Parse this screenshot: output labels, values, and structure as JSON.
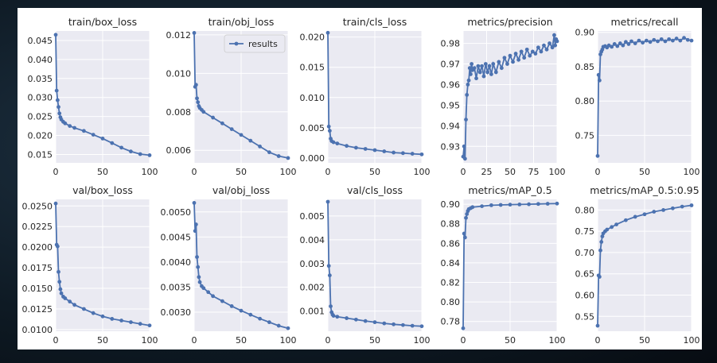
{
  "colors": {
    "series": "#4c72b0",
    "panel_bg": "#eaeaf2",
    "grid": "#ffffff",
    "frame_bg": "#0e1a24"
  },
  "legend": {
    "label": "results",
    "placement": "top-right",
    "panel": 1
  },
  "chart_data": [
    {
      "type": "line",
      "title": "train/box_loss",
      "xlim": [
        0,
        100
      ],
      "ylim": [
        0.0128,
        0.0475
      ],
      "xticks": [
        0,
        50,
        100
      ],
      "yticks": [
        0.015,
        0.02,
        0.025,
        0.03,
        0.035,
        0.04,
        0.045
      ],
      "ytick_labels": [
        "0.015",
        "0.020",
        "0.025",
        "0.030",
        "0.035",
        "0.040",
        "0.045"
      ],
      "points": [
        [
          0,
          0.0465
        ],
        [
          1,
          0.0318
        ],
        [
          2,
          0.0293
        ],
        [
          3,
          0.0275
        ],
        [
          4,
          0.0258
        ],
        [
          5,
          0.0248
        ],
        [
          6,
          0.0242
        ],
        [
          8,
          0.0236
        ],
        [
          10,
          0.0232
        ],
        [
          15,
          0.0225
        ],
        [
          20,
          0.022
        ],
        [
          30,
          0.0212
        ],
        [
          40,
          0.0202
        ],
        [
          50,
          0.0192
        ],
        [
          60,
          0.018
        ],
        [
          70,
          0.0168
        ],
        [
          80,
          0.0158
        ],
        [
          90,
          0.0151
        ],
        [
          100,
          0.0148
        ]
      ]
    },
    {
      "type": "line",
      "title": "train/obj_loss",
      "xlim": [
        0,
        100
      ],
      "ylim": [
        0.00535,
        0.0122
      ],
      "xticks": [
        0,
        50,
        100
      ],
      "yticks": [
        0.006,
        0.008,
        0.01,
        0.012
      ],
      "ytick_labels": [
        "0.006",
        "0.008",
        "0.010",
        "0.012"
      ],
      "points": [
        [
          0,
          0.0121
        ],
        [
          1,
          0.0093
        ],
        [
          2,
          0.0094
        ],
        [
          3,
          0.0087
        ],
        [
          4,
          0.0085
        ],
        [
          5,
          0.0083
        ],
        [
          6,
          0.0082
        ],
        [
          8,
          0.0081
        ],
        [
          10,
          0.008
        ],
        [
          20,
          0.0077
        ],
        [
          30,
          0.0074
        ],
        [
          40,
          0.0071
        ],
        [
          50,
          0.0068
        ],
        [
          60,
          0.0065
        ],
        [
          70,
          0.0062
        ],
        [
          80,
          0.0059
        ],
        [
          90,
          0.0057
        ],
        [
          100,
          0.0056
        ]
      ]
    },
    {
      "type": "line",
      "title": "train/cls_loss",
      "xlim": [
        0,
        100
      ],
      "ylim": [
        -0.0008,
        0.021
      ],
      "xticks": [
        0,
        50,
        100
      ],
      "yticks": [
        0.0,
        0.005,
        0.01,
        0.015,
        0.02
      ],
      "ytick_labels": [
        "0.000",
        "0.005",
        "0.010",
        "0.015",
        "0.020"
      ],
      "points": [
        [
          0,
          0.0207
        ],
        [
          1,
          0.0052
        ],
        [
          2,
          0.0045
        ],
        [
          3,
          0.0032
        ],
        [
          4,
          0.0028
        ],
        [
          6,
          0.0026
        ],
        [
          10,
          0.0024
        ],
        [
          20,
          0.002
        ],
        [
          30,
          0.0017
        ],
        [
          40,
          0.0015
        ],
        [
          50,
          0.0013
        ],
        [
          60,
          0.0011
        ],
        [
          70,
          0.0009
        ],
        [
          80,
          0.0008
        ],
        [
          90,
          0.0007
        ],
        [
          100,
          0.0006
        ]
      ]
    },
    {
      "type": "line",
      "title": "metrics/precision",
      "xlim": [
        0,
        100
      ],
      "ylim": [
        0.922,
        0.986
      ],
      "xticks": [
        0,
        25,
        50,
        75,
        100
      ],
      "yticks": [
        0.93,
        0.94,
        0.95,
        0.96,
        0.97,
        0.98
      ],
      "ytick_labels": [
        "0.93",
        "0.94",
        "0.95",
        "0.96",
        "0.97",
        "0.98"
      ],
      "points": [
        [
          0,
          0.925
        ],
        [
          1,
          0.93
        ],
        [
          2,
          0.924
        ],
        [
          3,
          0.943
        ],
        [
          4,
          0.955
        ],
        [
          5,
          0.96
        ],
        [
          6,
          0.962
        ],
        [
          7,
          0.968
        ],
        [
          8,
          0.965
        ],
        [
          9,
          0.97
        ],
        [
          10,
          0.967
        ],
        [
          12,
          0.968
        ],
        [
          14,
          0.963
        ],
        [
          16,
          0.969
        ],
        [
          18,
          0.966
        ],
        [
          20,
          0.969
        ],
        [
          22,
          0.964
        ],
        [
          24,
          0.97
        ],
        [
          26,
          0.966
        ],
        [
          28,
          0.969
        ],
        [
          30,
          0.965
        ],
        [
          32,
          0.97
        ],
        [
          35,
          0.966
        ],
        [
          38,
          0.971
        ],
        [
          41,
          0.968
        ],
        [
          44,
          0.973
        ],
        [
          47,
          0.97
        ],
        [
          50,
          0.974
        ],
        [
          53,
          0.971
        ],
        [
          56,
          0.975
        ],
        [
          59,
          0.972
        ],
        [
          62,
          0.976
        ],
        [
          65,
          0.973
        ],
        [
          68,
          0.977
        ],
        [
          71,
          0.974
        ],
        [
          74,
          0.976
        ],
        [
          77,
          0.975
        ],
        [
          80,
          0.978
        ],
        [
          83,
          0.976
        ],
        [
          86,
          0.979
        ],
        [
          89,
          0.977
        ],
        [
          92,
          0.98
        ],
        [
          95,
          0.978
        ],
        [
          97,
          0.984
        ],
        [
          98,
          0.979
        ],
        [
          99,
          0.982
        ],
        [
          100,
          0.981
        ]
      ]
    },
    {
      "type": "line",
      "title": "metrics/recall",
      "xlim": [
        0,
        100
      ],
      "ylim": [
        0.71,
        0.902
      ],
      "xticks": [
        0,
        50,
        100
      ],
      "yticks": [
        0.75,
        0.8,
        0.85,
        0.9
      ],
      "ytick_labels": [
        "0.75",
        "0.80",
        "0.85",
        "0.90"
      ],
      "points": [
        [
          0,
          0.72
        ],
        [
          1,
          0.838
        ],
        [
          2,
          0.83
        ],
        [
          3,
          0.868
        ],
        [
          4,
          0.872
        ],
        [
          5,
          0.875
        ],
        [
          6,
          0.879
        ],
        [
          8,
          0.88
        ],
        [
          10,
          0.878
        ],
        [
          12,
          0.881
        ],
        [
          15,
          0.879
        ],
        [
          18,
          0.883
        ],
        [
          21,
          0.88
        ],
        [
          24,
          0.884
        ],
        [
          27,
          0.881
        ],
        [
          30,
          0.886
        ],
        [
          33,
          0.883
        ],
        [
          36,
          0.887
        ],
        [
          40,
          0.884
        ],
        [
          44,
          0.888
        ],
        [
          48,
          0.885
        ],
        [
          52,
          0.888
        ],
        [
          56,
          0.886
        ],
        [
          60,
          0.889
        ],
        [
          64,
          0.887
        ],
        [
          68,
          0.89
        ],
        [
          72,
          0.887
        ],
        [
          76,
          0.89
        ],
        [
          80,
          0.888
        ],
        [
          84,
          0.891
        ],
        [
          88,
          0.888
        ],
        [
          92,
          0.892
        ],
        [
          96,
          0.889
        ],
        [
          100,
          0.888
        ]
      ]
    },
    {
      "type": "line",
      "title": "val/box_loss",
      "xlim": [
        0,
        100
      ],
      "ylim": [
        0.0098,
        0.0258
      ],
      "xticks": [
        0,
        50,
        100
      ],
      "yticks": [
        0.01,
        0.0125,
        0.015,
        0.0175,
        0.02,
        0.0225,
        0.025
      ],
      "ytick_labels": [
        "0.0100",
        "0.0125",
        "0.0150",
        "0.0175",
        "0.0200",
        "0.0225",
        "0.0250"
      ],
      "points": [
        [
          0,
          0.0253
        ],
        [
          1,
          0.0203
        ],
        [
          2,
          0.0201
        ],
        [
          3,
          0.017
        ],
        [
          4,
          0.0158
        ],
        [
          5,
          0.0149
        ],
        [
          6,
          0.0144
        ],
        [
          8,
          0.014
        ],
        [
          10,
          0.0138
        ],
        [
          15,
          0.0134
        ],
        [
          20,
          0.013
        ],
        [
          30,
          0.0125
        ],
        [
          40,
          0.012
        ],
        [
          50,
          0.0116
        ],
        [
          60,
          0.0113
        ],
        [
          70,
          0.0111
        ],
        [
          80,
          0.0109
        ],
        [
          90,
          0.0107
        ],
        [
          100,
          0.0105
        ]
      ]
    },
    {
      "type": "line",
      "title": "val/obj_loss",
      "xlim": [
        0,
        100
      ],
      "ylim": [
        0.00262,
        0.00525
      ],
      "xticks": [
        0,
        50,
        100
      ],
      "yticks": [
        0.003,
        0.0035,
        0.004,
        0.0045,
        0.005
      ],
      "ytick_labels": [
        "0.0030",
        "0.0035",
        "0.0040",
        "0.0045",
        "0.0050"
      ],
      "points": [
        [
          0,
          0.00518
        ],
        [
          1,
          0.00462
        ],
        [
          2,
          0.00475
        ],
        [
          3,
          0.0041
        ],
        [
          4,
          0.0039
        ],
        [
          5,
          0.0037
        ],
        [
          6,
          0.0036
        ],
        [
          8,
          0.00352
        ],
        [
          10,
          0.00348
        ],
        [
          15,
          0.0034
        ],
        [
          20,
          0.00332
        ],
        [
          30,
          0.00322
        ],
        [
          40,
          0.00312
        ],
        [
          50,
          0.00303
        ],
        [
          60,
          0.00295
        ],
        [
          70,
          0.00287
        ],
        [
          80,
          0.0028
        ],
        [
          90,
          0.00273
        ],
        [
          100,
          0.00268
        ]
      ]
    },
    {
      "type": "line",
      "title": "val/cls_loss",
      "xlim": [
        0,
        100
      ],
      "ylim": [
        0.00015,
        0.0057
      ],
      "xticks": [
        0,
        50,
        100
      ],
      "yticks": [
        0.001,
        0.002,
        0.003,
        0.004,
        0.005
      ],
      "ytick_labels": [
        "0.001",
        "0.002",
        "0.003",
        "0.004",
        "0.005"
      ],
      "points": [
        [
          0,
          0.0056
        ],
        [
          1,
          0.0029
        ],
        [
          2,
          0.0025
        ],
        [
          3,
          0.0012
        ],
        [
          4,
          0.00095
        ],
        [
          5,
          0.00085
        ],
        [
          6,
          0.0008
        ],
        [
          10,
          0.00076
        ],
        [
          20,
          0.0007
        ],
        [
          30,
          0.00064
        ],
        [
          40,
          0.00058
        ],
        [
          50,
          0.00053
        ],
        [
          60,
          0.00048
        ],
        [
          70,
          0.00044
        ],
        [
          80,
          0.00041
        ],
        [
          90,
          0.00038
        ],
        [
          100,
          0.00036
        ]
      ]
    },
    {
      "type": "line",
      "title": "metrics/mAP_0.5",
      "xlim": [
        0,
        100
      ],
      "ylim": [
        0.77,
        0.905
      ],
      "xticks": [
        0,
        50,
        100
      ],
      "yticks": [
        0.78,
        0.8,
        0.82,
        0.84,
        0.86,
        0.88,
        0.9
      ],
      "ytick_labels": [
        "0.78",
        "0.80",
        "0.82",
        "0.84",
        "0.86",
        "0.88",
        "0.90"
      ],
      "points": [
        [
          0,
          0.773
        ],
        [
          1,
          0.87
        ],
        [
          2,
          0.866
        ],
        [
          3,
          0.886
        ],
        [
          4,
          0.89
        ],
        [
          5,
          0.893
        ],
        [
          6,
          0.895
        ],
        [
          8,
          0.896
        ],
        [
          10,
          0.897
        ],
        [
          20,
          0.898
        ],
        [
          30,
          0.899
        ],
        [
          40,
          0.8993
        ],
        [
          50,
          0.8996
        ],
        [
          60,
          0.8998
        ],
        [
          70,
          0.9
        ],
        [
          80,
          0.9003
        ],
        [
          90,
          0.9005
        ],
        [
          100,
          0.9007
        ]
      ]
    },
    {
      "type": "line",
      "title": "metrics/mAP_0.5:0.95",
      "xlim": [
        0,
        100
      ],
      "ylim": [
        0.515,
        0.825
      ],
      "xticks": [
        0,
        50,
        100
      ],
      "yticks": [
        0.55,
        0.6,
        0.65,
        0.7,
        0.75,
        0.8
      ],
      "ytick_labels": [
        "0.55",
        "0.60",
        "0.65",
        "0.70",
        "0.75",
        "0.80"
      ],
      "points": [
        [
          0,
          0.528
        ],
        [
          1,
          0.646
        ],
        [
          2,
          0.643
        ],
        [
          3,
          0.705
        ],
        [
          4,
          0.725
        ],
        [
          5,
          0.738
        ],
        [
          6,
          0.745
        ],
        [
          8,
          0.75
        ],
        [
          10,
          0.754
        ],
        [
          15,
          0.76
        ],
        [
          20,
          0.766
        ],
        [
          30,
          0.776
        ],
        [
          40,
          0.784
        ],
        [
          50,
          0.79
        ],
        [
          60,
          0.796
        ],
        [
          70,
          0.8
        ],
        [
          80,
          0.804
        ],
        [
          90,
          0.808
        ],
        [
          100,
          0.811
        ]
      ]
    }
  ]
}
